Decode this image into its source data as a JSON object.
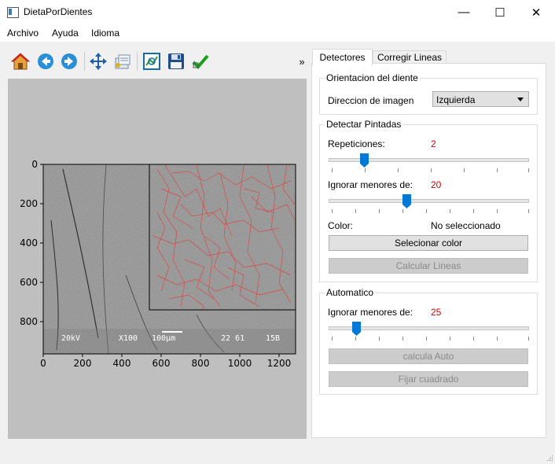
{
  "window": {
    "title": "DietaPorDientes",
    "minimize": "—",
    "maximize": "☐",
    "close": "✕"
  },
  "menu": [
    "Archivo",
    "Ayuda",
    "Idioma"
  ],
  "toolbar": {
    "icons": [
      "home-icon",
      "back-icon",
      "forward-icon",
      "pan-icon",
      "configure-subplots-icon",
      "edit-axis-icon",
      "save-icon",
      "check-icon"
    ],
    "overflow": "»"
  },
  "plot": {
    "x_ticks": [
      "0",
      "200",
      "400",
      "600",
      "800",
      "1000",
      "1200"
    ],
    "y_ticks": [
      "0",
      "200",
      "400",
      "600",
      "800"
    ],
    "sem_caption": [
      "20kV",
      "X100",
      "100µm",
      "22 61",
      "15B"
    ]
  },
  "tabs": [
    "Detectores",
    "Corregir Lineas"
  ],
  "orientation": {
    "title": "Orientacion del diente",
    "direction_label": "Direccion de imagen",
    "direction_value": "Izquierda"
  },
  "detect": {
    "title": "Detectar Pintadas",
    "repetitions_label": "Repeticiones:",
    "repetitions_value": "2",
    "ignore_label": "Ignorar menores de:",
    "ignore_value": "20",
    "color_label": "Color:",
    "color_value": "No seleccionado",
    "select_color": "Selecionar color",
    "calc_lines": "Calcular Lineas"
  },
  "auto": {
    "title": "Automatico",
    "ignore_label": "Ignorar menores de:",
    "ignore_value": "25",
    "calc_auto": "calcula Auto",
    "fix_square": "Fijar cuadrado"
  },
  "colors": {
    "accent": "#0078d7",
    "value_red": "#d00000",
    "overlay_red": "#e0403a"
  }
}
